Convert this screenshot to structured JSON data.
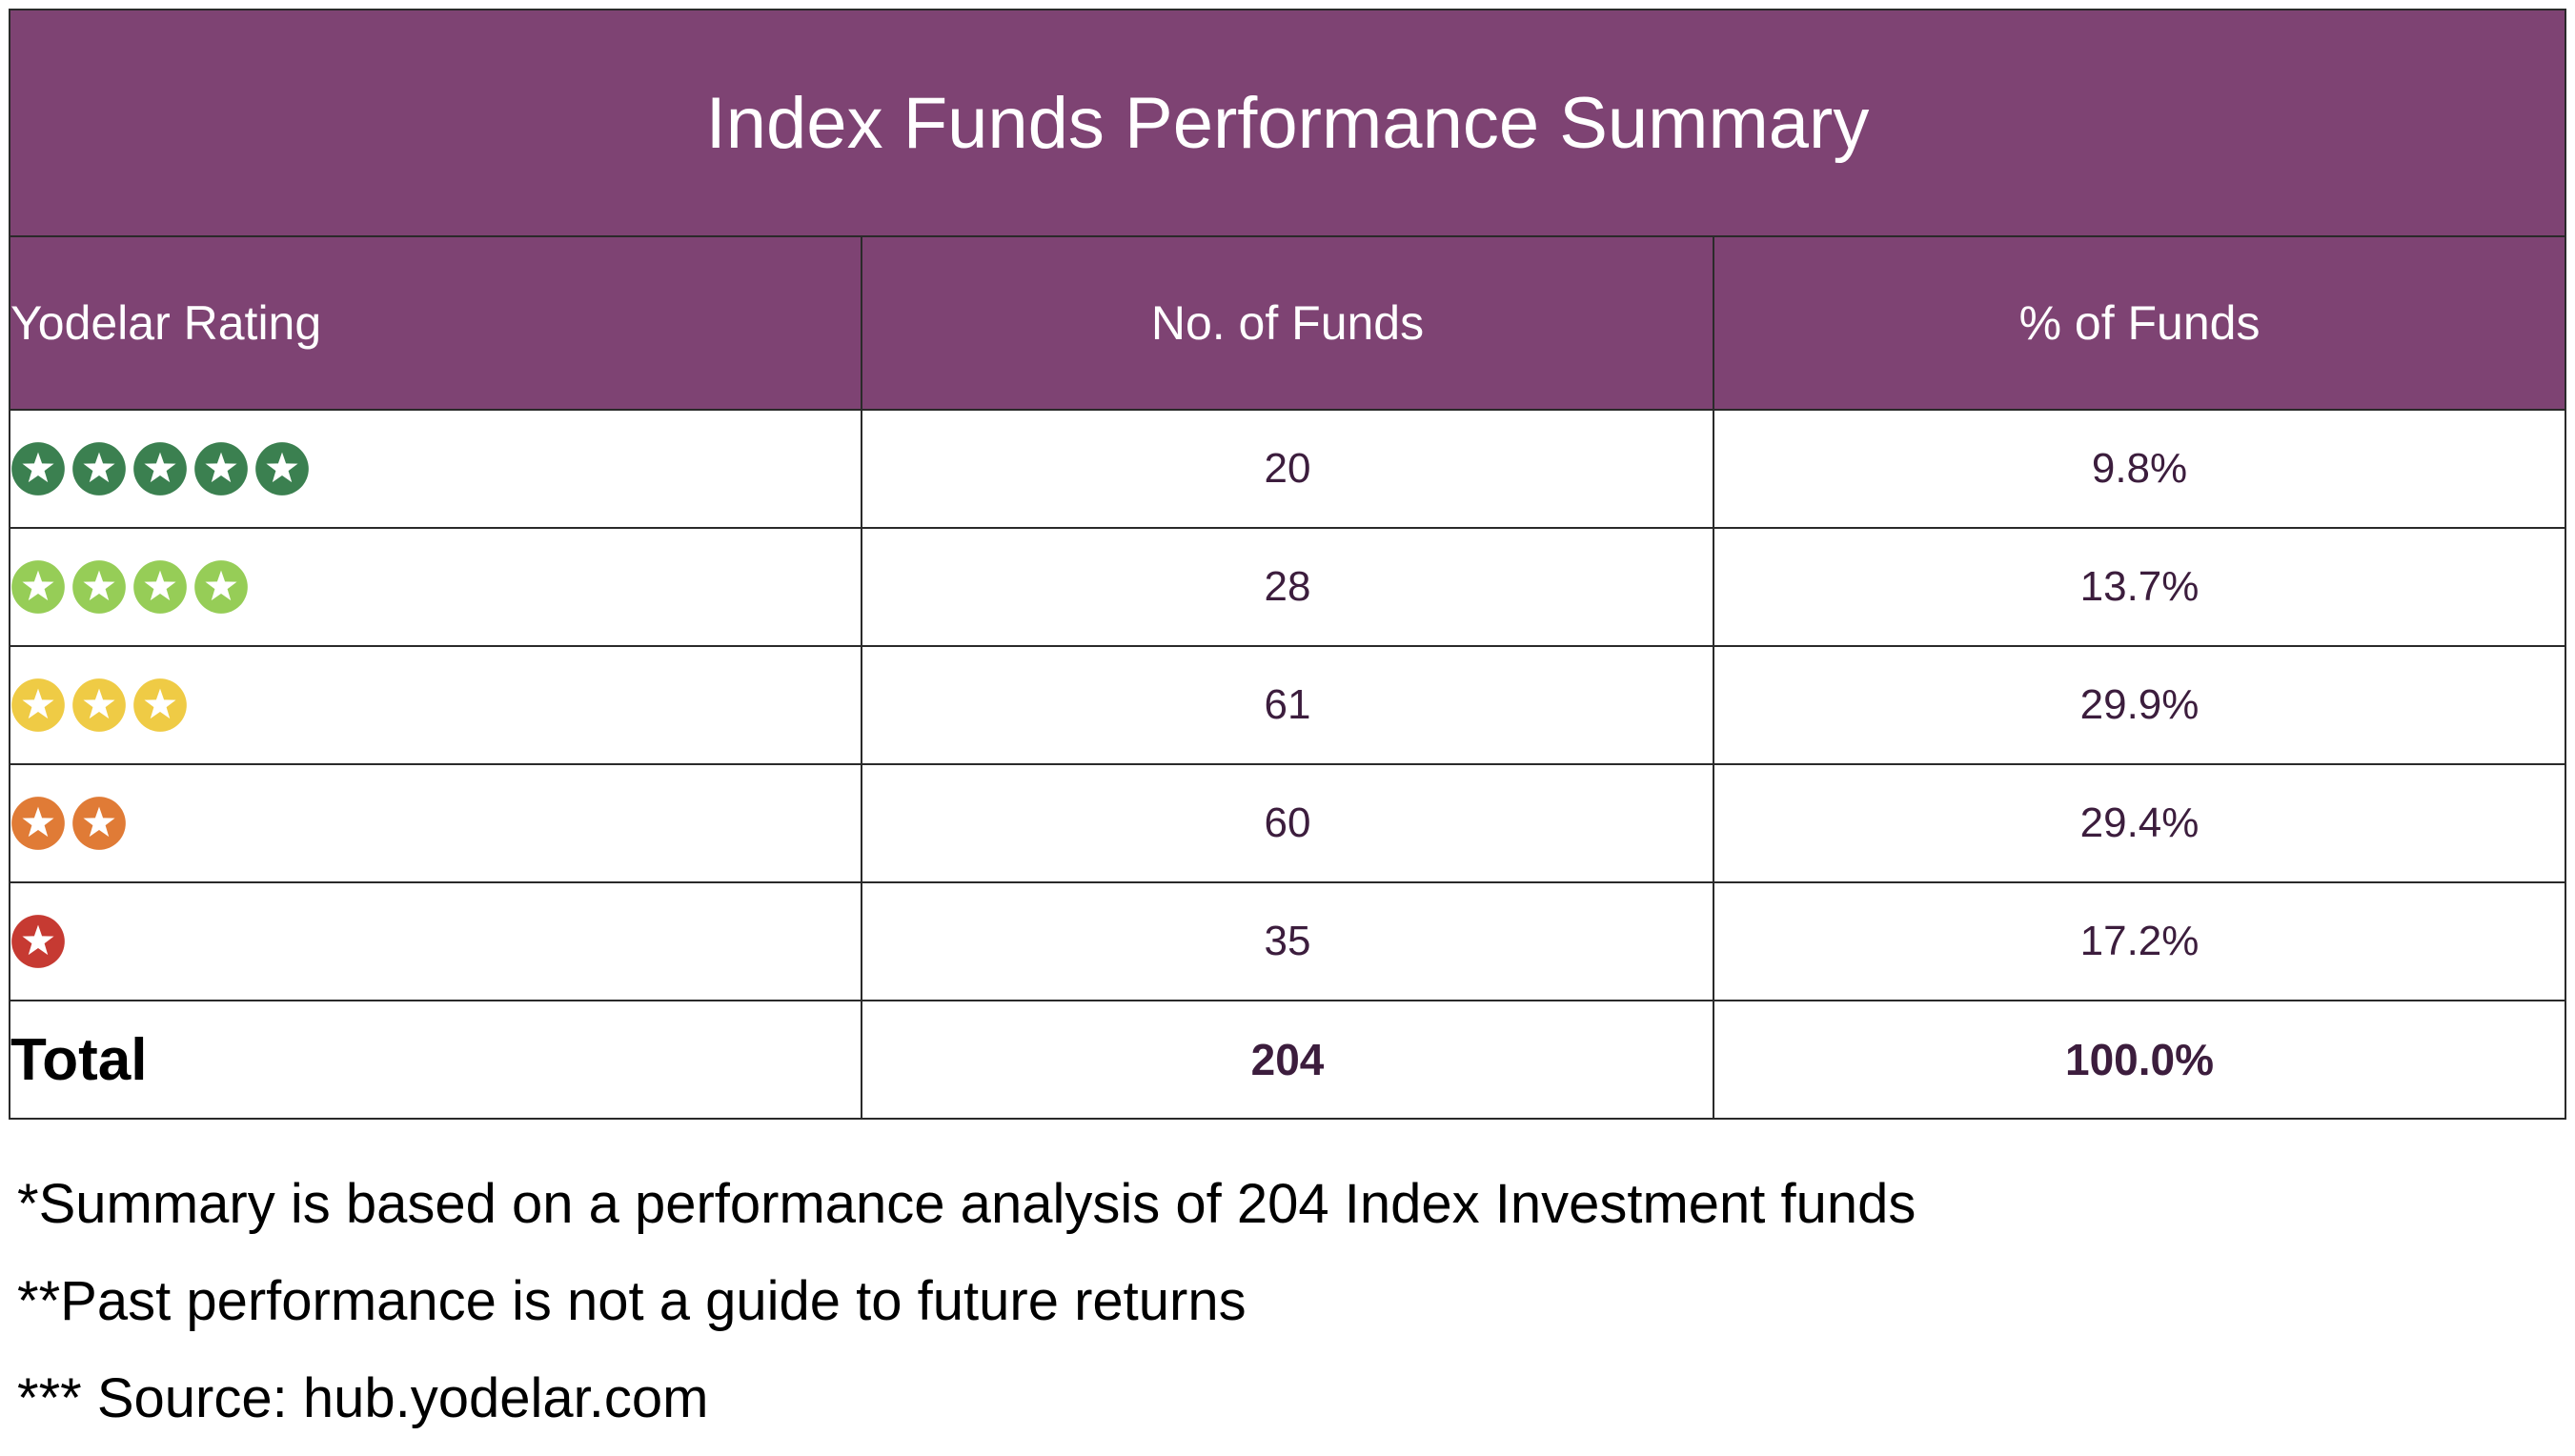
{
  "chart_data": {
    "type": "table",
    "title": "Index Funds Performance Summary",
    "columns": [
      "Yodelar Rating",
      "No. of Funds",
      "% of Funds"
    ],
    "rows": [
      {
        "stars": 5,
        "color": "#3b8050",
        "count": "20",
        "percent": "9.8%"
      },
      {
        "stars": 4,
        "color": "#96cd57",
        "count": "28",
        "percent": "13.7%"
      },
      {
        "stars": 3,
        "color": "#efcb45",
        "count": "61",
        "percent": "29.9%"
      },
      {
        "stars": 2,
        "color": "#e07b36",
        "count": "60",
        "percent": "29.4%"
      },
      {
        "stars": 1,
        "color": "#c63a32",
        "count": "35",
        "percent": "17.2%"
      }
    ],
    "total": {
      "label": "Total",
      "count": "204",
      "percent": "100.0%"
    }
  },
  "colors": {
    "header_bg": "#7e4373",
    "text": "#3c1d3d"
  },
  "icons": {
    "rating": "star-badge-icon"
  },
  "notes": [
    "*Summary is based on a performance analysis of 204 Index Investment funds",
    "**Past performance is not a guide to future returns",
    "*** Source: hub.yodelar.com"
  ]
}
